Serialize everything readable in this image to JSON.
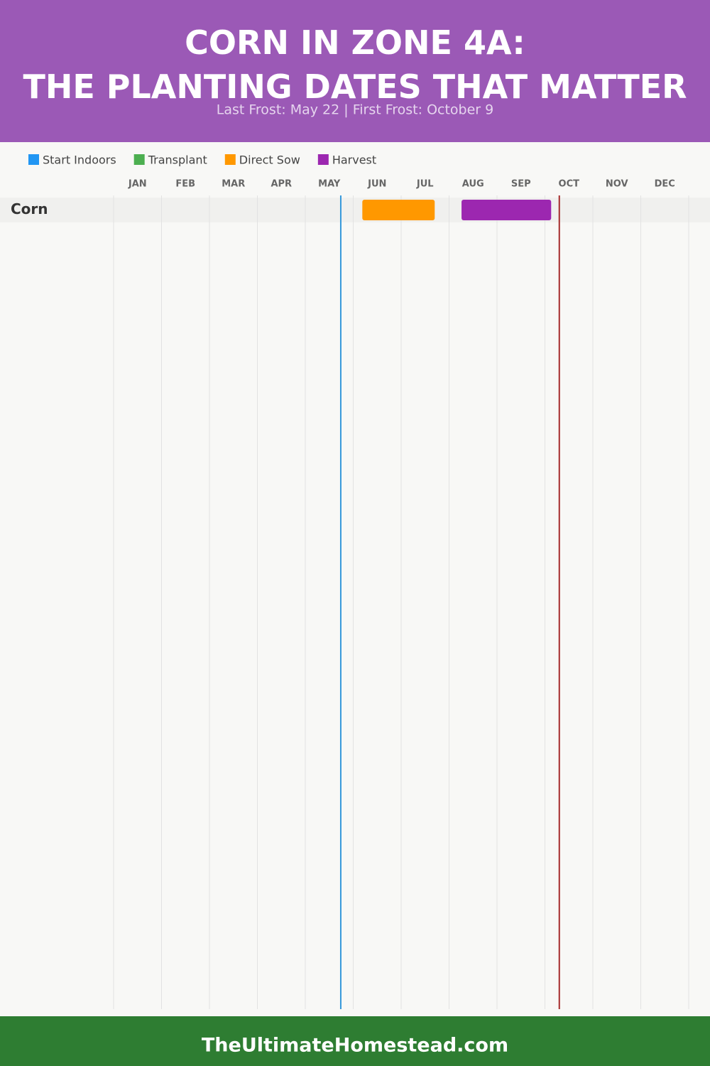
{
  "chart_data": {
    "type": "timeline",
    "title": "CORN IN ZONE 4A: THE PLANTING DATES THAT MATTER",
    "subtitle": "Last Frost: May 22 | First Frost: October 9",
    "months": [
      "JAN",
      "FEB",
      "MAR",
      "APR",
      "MAY",
      "JUN",
      "JUL",
      "AUG",
      "SEP",
      "OCT",
      "NOV",
      "DEC"
    ],
    "xlim": [
      0,
      12
    ],
    "categories": [
      "Corn"
    ],
    "series": [
      {
        "name": "Start Indoors",
        "color": "#2196f3",
        "values": [
          null
        ]
      },
      {
        "name": "Transplant",
        "color": "#4caf50",
        "values": [
          null
        ]
      },
      {
        "name": "Direct Sow",
        "color": "#ff9800",
        "values": [
          [
            5.19,
            6.7
          ]
        ]
      },
      {
        "name": "Harvest",
        "color": "#9c27b0",
        "values": [
          [
            7.26,
            9.13
          ]
        ]
      }
    ],
    "frost_lines": [
      {
        "value": 4.74,
        "color": "#3498db"
      },
      {
        "value": 9.3,
        "color": "#a52a2a"
      }
    ],
    "grid": true
  },
  "footer": "TheUltimateHomestead.com"
}
